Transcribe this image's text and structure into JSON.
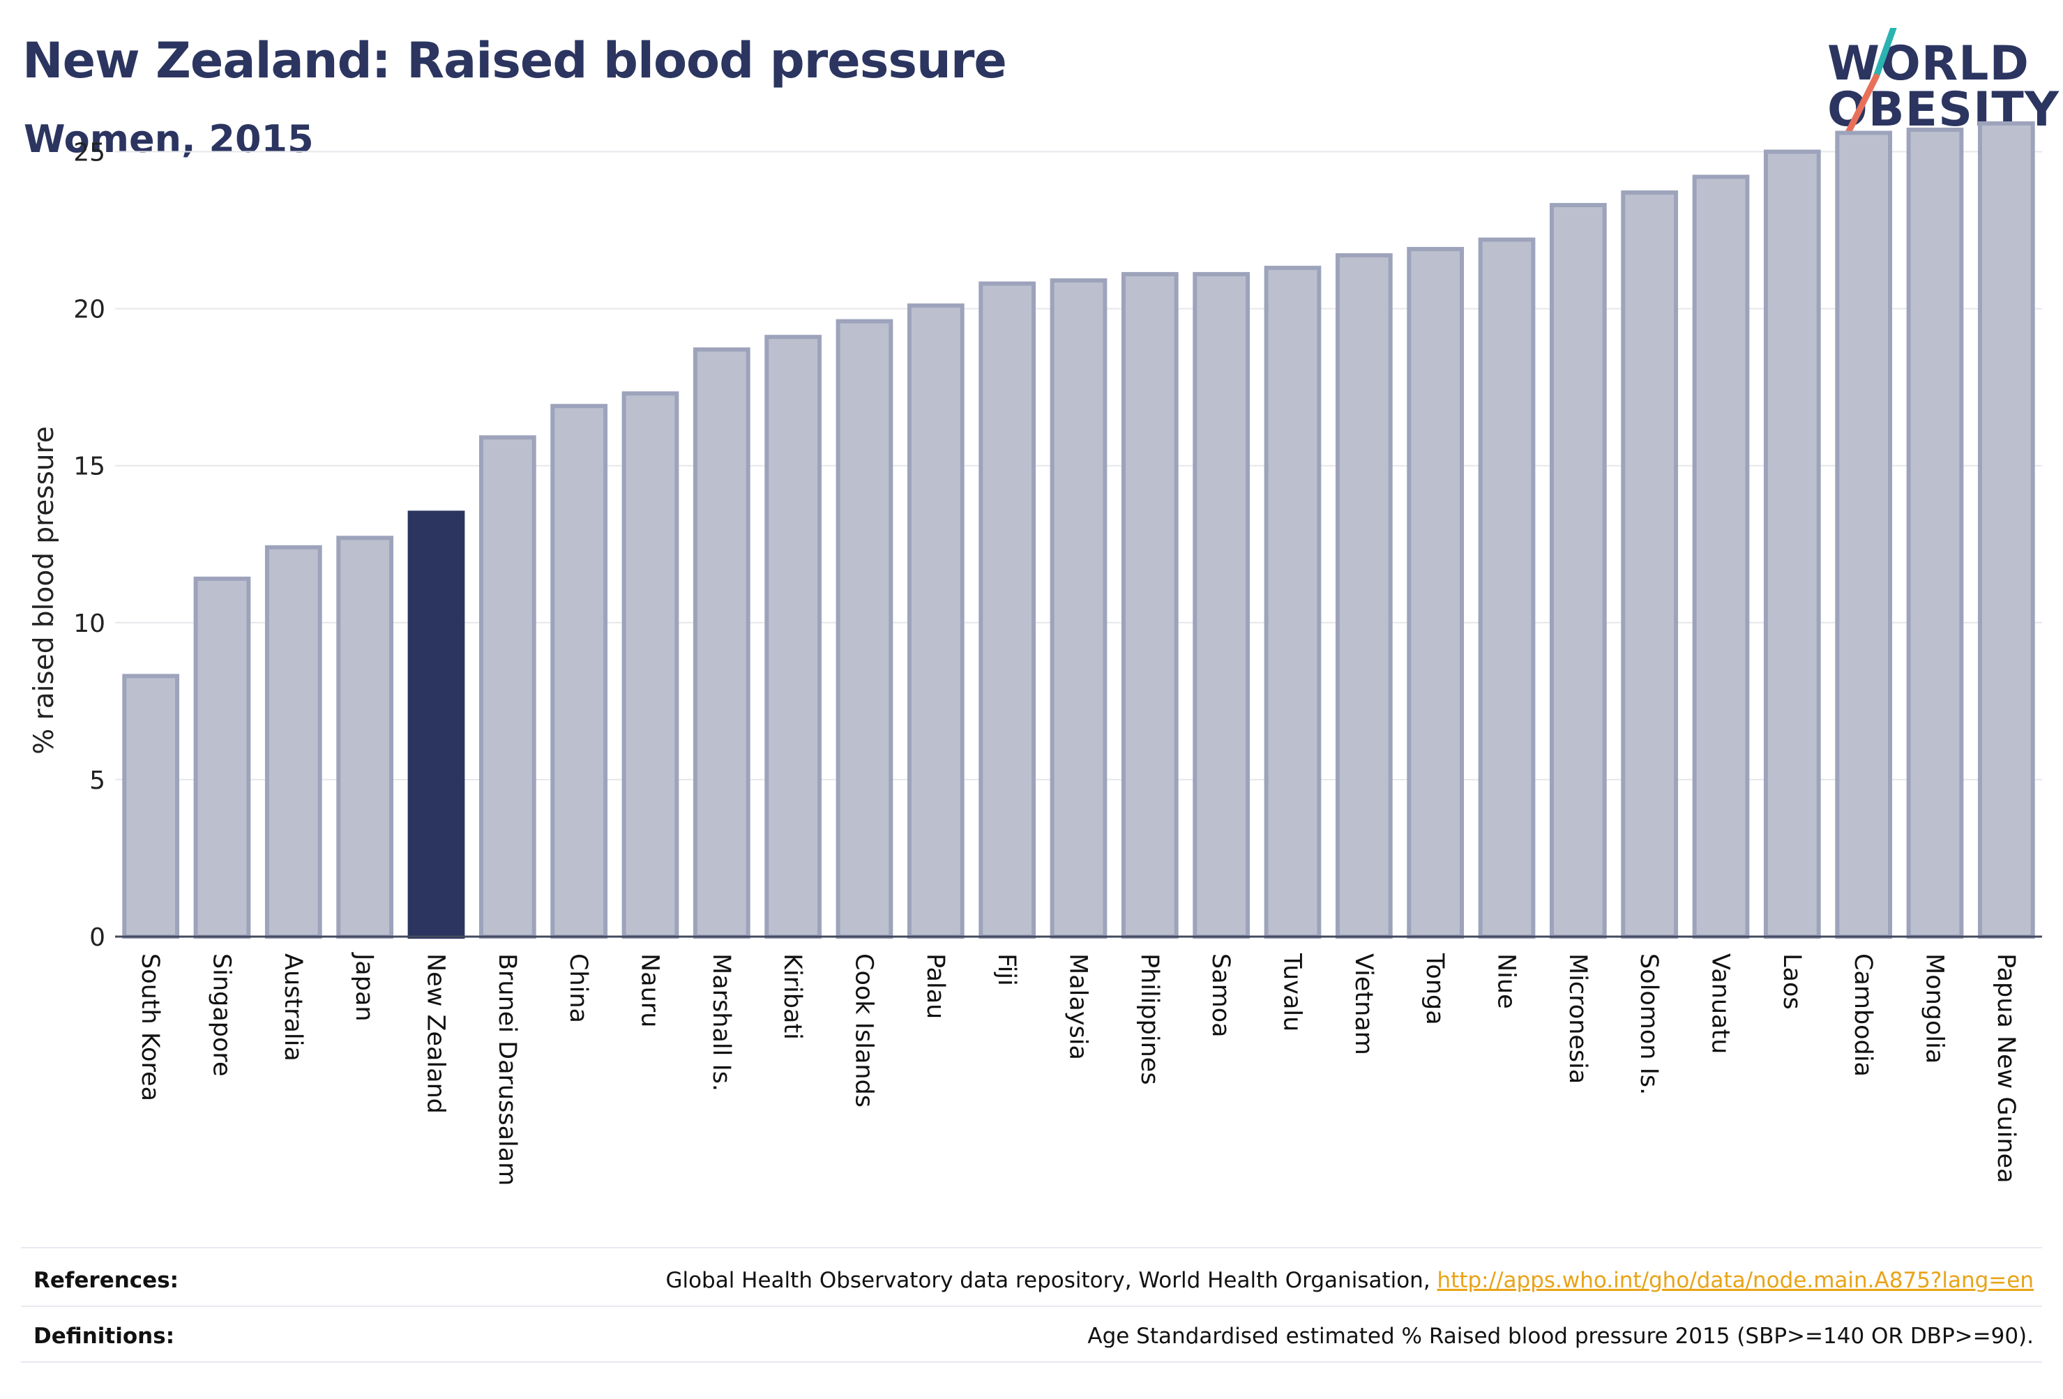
{
  "header": {
    "title": "New Zealand: Raised blood pressure",
    "subtitle": "Women, 2015"
  },
  "logo": {
    "line1": "WORLD",
    "line2": "OBESITY",
    "accent_colors": [
      "#2bb3b1",
      "#e8705a"
    ]
  },
  "colors": {
    "bar_default": "#bcc0ce",
    "bar_border": "#9da3bb",
    "bar_highlight": "#2b3560",
    "text": "#2b3560",
    "link": "#e8a317"
  },
  "chart_data": {
    "type": "bar",
    "ylabel": "% raised blood pressure",
    "ylim": [
      0,
      26.5
    ],
    "yticks": [
      0,
      5,
      10,
      15,
      20,
      25
    ],
    "highlight": "New Zealand",
    "categories": [
      "South Korea",
      "Singapore",
      "Australia",
      "Japan",
      "New Zealand",
      "Brunei Darussalam",
      "China",
      "Nauru",
      "Marshall Is.",
      "Kiribati",
      "Cook Islands",
      "Palau",
      "Fiji",
      "Malaysia",
      "Philippines",
      "Samoa",
      "Tuvalu",
      "Vietnam",
      "Tonga",
      "Niue",
      "Micronesia",
      "Solomon Is.",
      "Vanuatu",
      "Laos",
      "Cambodia",
      "Mongolia",
      "Papua New Guinea"
    ],
    "values": [
      8.3,
      11.4,
      12.4,
      12.7,
      13.5,
      15.9,
      16.9,
      17.3,
      18.7,
      19.1,
      19.6,
      20.1,
      20.8,
      20.9,
      21.1,
      21.1,
      21.3,
      21.7,
      21.9,
      22.2,
      23.3,
      23.7,
      24.2,
      25.0,
      25.6,
      25.7,
      25.9
    ]
  },
  "footer": {
    "references_label": "References:",
    "references_text": "Global Health Observatory data repository, World Health Organisation,",
    "references_link": "http://apps.who.int/gho/data/node.main.A875?lang=en",
    "definitions_label": "Definitions:",
    "definitions_text": "Age Standardised estimated % Raised blood pressure 2015 (SBP>=140 OR DBP>=90)."
  }
}
